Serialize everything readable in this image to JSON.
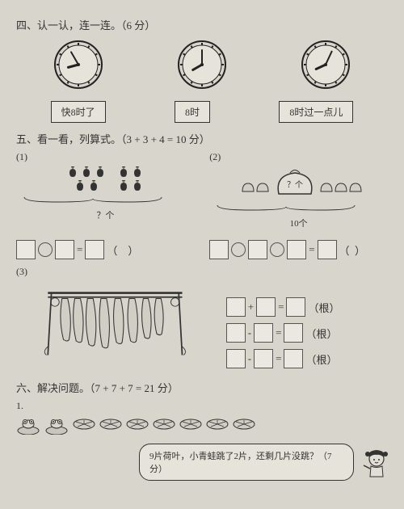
{
  "section4": {
    "title": "四、认一认，连一连。（6 分）",
    "clocks": [
      {
        "hour_angle": -105,
        "minute_angle": -30
      },
      {
        "hour_angle": -120,
        "minute_angle": 0
      },
      {
        "hour_angle": -115,
        "minute_angle": 25
      }
    ],
    "labels": [
      "快8时了",
      "8时",
      "8时过一点儿"
    ]
  },
  "section5": {
    "title": "五、看一看，列算式。（3 + 3 + 4 = 10 分）",
    "q1": {
      "num": "(1)",
      "left_count": 5,
      "right_count": 4,
      "label": "？个"
    },
    "q2": {
      "num": "(2)",
      "bag_label": "？个",
      "total": "10个"
    },
    "q3": {
      "num": "(3)",
      "eqs_unit": "（根）"
    }
  },
  "section6": {
    "title": "六、解决问题。（7 + 7 + 7 = 21 分）",
    "num": "1.",
    "lotus_count": 9,
    "bubble": "9片荷叶，小青蛙跳了2片，还剩几片没跳？（7分）"
  }
}
